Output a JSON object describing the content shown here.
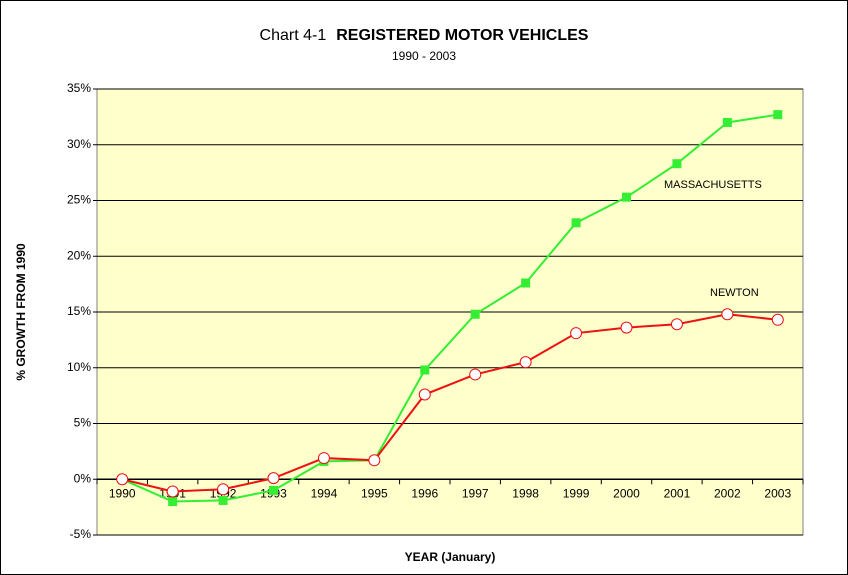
{
  "chart_data": {
    "type": "line",
    "chart_label": "Chart 4-1",
    "title": "REGISTERED MOTOR VEHICLES",
    "subtitle": "1990 - 2003",
    "y_label": "% GROWTH FROM 1990",
    "x_label": "YEAR (January)",
    "categories": [
      "1990",
      "1991",
      "1992",
      "1993",
      "1994",
      "1995",
      "1996",
      "1997",
      "1998",
      "1999",
      "2000",
      "2001",
      "2002",
      "2003"
    ],
    "series": [
      {
        "name": "MASSACHUSETTS",
        "color": "#33ee33",
        "marker": "square",
        "values": [
          0,
          -2.0,
          -1.9,
          -1.0,
          1.6,
          1.7,
          9.8,
          14.8,
          17.6,
          23.0,
          25.3,
          28.3,
          32.0,
          32.7
        ]
      },
      {
        "name": "NEWTON",
        "color": "#ee1111",
        "marker": "circle",
        "values": [
          0,
          -1.1,
          -0.9,
          0.1,
          1.9,
          1.7,
          7.6,
          9.4,
          10.5,
          13.1,
          13.6,
          13.9,
          14.8,
          14.3
        ]
      }
    ],
    "ylim": [
      -5,
      35
    ],
    "yticks": [
      {
        "value": -5,
        "label": "-5%"
      },
      {
        "value": 0,
        "label": "0%"
      },
      {
        "value": 5,
        "label": "5%"
      },
      {
        "value": 10,
        "label": "10%"
      },
      {
        "value": 15,
        "label": "15%"
      },
      {
        "value": 20,
        "label": "20%"
      },
      {
        "value": 25,
        "label": "25%"
      },
      {
        "value": 30,
        "label": "30%"
      },
      {
        "value": 35,
        "label": "35%"
      }
    ],
    "grid": true,
    "plot_background": "#ffffcc"
  }
}
